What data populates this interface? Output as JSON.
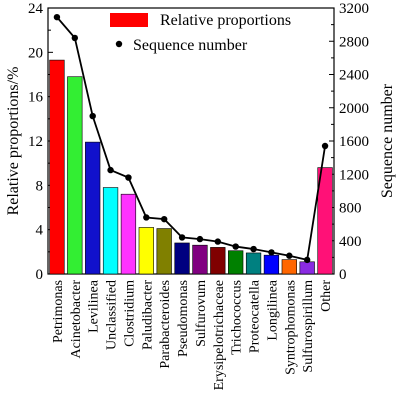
{
  "chart_data": {
    "type": "bar",
    "categories": [
      "Petrimonas",
      "Acinetobacter",
      "Levilinea",
      "Unclassified",
      "Clostridium",
      "Paludibacter",
      "Parabacteroides",
      "Pseudomonas",
      "Sulfurovum",
      "Erysipelotrichaceae",
      "Trichococcus",
      "Proteocatella",
      "Longilinea",
      "Syntrophomonas",
      "Sulfurospirillum",
      "Other"
    ],
    "series": [
      {
        "name": "Relative proportions",
        "axis": "left",
        "kind": "bar",
        "values": [
          19.3,
          17.8,
          11.9,
          7.8,
          7.2,
          4.2,
          4.1,
          2.8,
          2.6,
          2.4,
          2.1,
          1.9,
          1.7,
          1.3,
          1.1,
          9.6
        ],
        "colors": [
          "#ff0000",
          "#33ee33",
          "#1111cc",
          "#00ffff",
          "#ff33ff",
          "#ffff00",
          "#808000",
          "#000080",
          "#800080",
          "#800000",
          "#008000",
          "#008080",
          "#0000ff",
          "#ff6600",
          "#8a2be2",
          "#ff1177"
        ]
      },
      {
        "name": "Sequence number",
        "axis": "right",
        "kind": "line",
        "values": [
          3090,
          2840,
          1900,
          1250,
          1160,
          680,
          660,
          440,
          420,
          390,
          330,
          300,
          260,
          220,
          170,
          1540
        ],
        "color": "#000000"
      }
    ],
    "ylabel": "Relative proportions/%",
    "ylabel_right": "Sequence number",
    "ylim": [
      0,
      24
    ],
    "ylim_right": [
      0,
      3200
    ],
    "yticks": [
      0,
      4,
      8,
      12,
      16,
      20,
      24
    ],
    "yticks_right": [
      0,
      400,
      800,
      1200,
      1600,
      2000,
      2400,
      2800,
      3200
    ],
    "legend_position": "top-right"
  }
}
